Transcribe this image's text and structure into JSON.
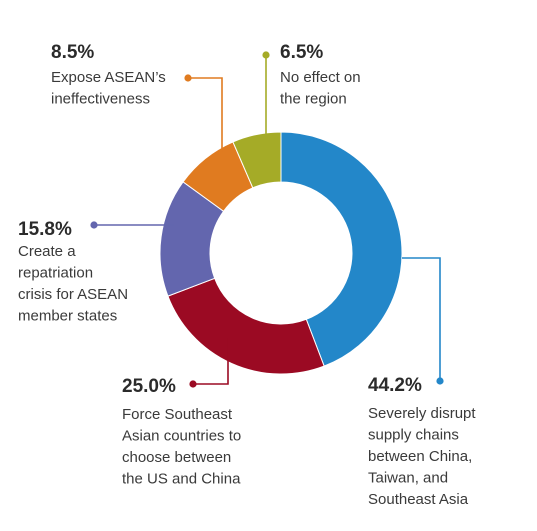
{
  "chart_data": {
    "type": "pie",
    "donut": true,
    "slices": [
      {
        "value": 44.2,
        "pct_label": "44.2%",
        "label_lines": [
          "Severely disrupt",
          "supply chains",
          "between China,",
          "Taiwan, and",
          "Southeast Asia"
        ],
        "color": "#2387c9"
      },
      {
        "value": 25.0,
        "pct_label": "25.0%",
        "label_lines": [
          "Force Southeast",
          "Asian countries to",
          "choose between",
          "the US and China"
        ],
        "color": "#9b0a23"
      },
      {
        "value": 15.8,
        "pct_label": "15.8%",
        "label_lines": [
          "Create a",
          "repatriation",
          "crisis for ASEAN",
          "member states"
        ],
        "color": "#6366ae"
      },
      {
        "value": 8.5,
        "pct_label": "8.5%",
        "label_lines": [
          "Expose ASEAN’s",
          "ineffectiveness"
        ],
        "color": "#e07b20"
      },
      {
        "value": 6.5,
        "pct_label": "6.5%",
        "label_lines": [
          "No effect on",
          "the region"
        ],
        "color": "#a5ab27"
      }
    ]
  }
}
